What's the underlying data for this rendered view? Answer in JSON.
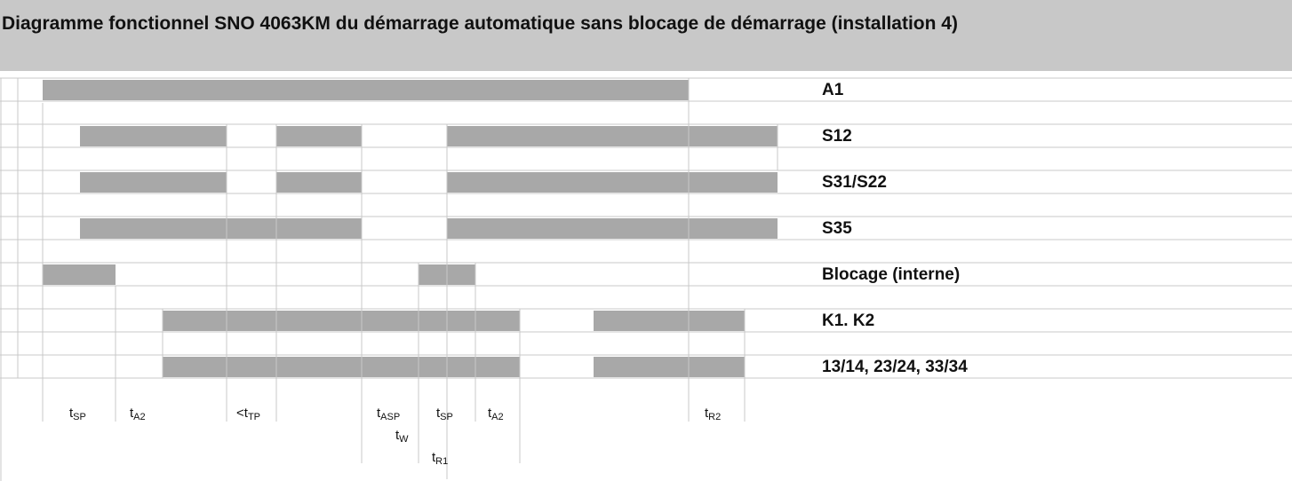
{
  "title": "Diagramme fonctionnel SNO 4063KM du démarrage automatique sans blocage de démarrage (installation 4)",
  "signals": [
    "A1",
    "S12",
    "S31/S22",
    "S35",
    "Blocage (interne)",
    "K1. K2",
    "13/14, 23/24, 33/34"
  ],
  "times": [
    {
      "base": "t",
      "sub": "SP"
    },
    {
      "base": "t",
      "sub": "A2"
    },
    {
      "base": "<t",
      "sub": "TP"
    },
    {
      "base": "t",
      "sub": "ASP"
    },
    {
      "base": "t",
      "sub": "SP"
    },
    {
      "base": "t",
      "sub": "A2"
    },
    {
      "base": "t",
      "sub": "W"
    },
    {
      "base": "t",
      "sub": "R1"
    },
    {
      "base": "t",
      "sub": "R2"
    }
  ]
}
